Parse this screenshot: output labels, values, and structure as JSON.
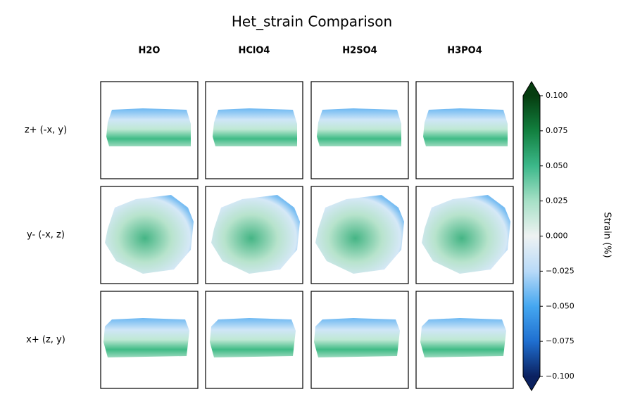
{
  "chart_data": {
    "type": "heatmap",
    "title": "Het_strain Comparison",
    "columns": [
      "H2O",
      "HClO4",
      "H2SO4",
      "H3PO4"
    ],
    "rows": [
      "z+ (-x, y)",
      "y- (-x, z)",
      "x+ (z, y)"
    ],
    "colorbar_label": "Strain (%)",
    "clim": [
      -0.1,
      0.1
    ],
    "cticks": [
      {
        "value": -0.1,
        "label": "−0.100"
      },
      {
        "value": -0.075,
        "label": "−0.075"
      },
      {
        "value": -0.05,
        "label": "−0.050"
      },
      {
        "value": -0.025,
        "label": "−0.025"
      },
      {
        "value": 0,
        "label": "0.000"
      },
      {
        "value": 0.025,
        "label": "0.025"
      },
      {
        "value": 0.05,
        "label": "0.050"
      },
      {
        "value": 0.075,
        "label": "0.075"
      },
      {
        "value": 0.1,
        "label": "0.100"
      }
    ],
    "colormap": [
      "#0b2160",
      "#1f6fd0",
      "#45a7f0",
      "#b8daf8",
      "#eef2f2",
      "#a6e0c6",
      "#3cb88a",
      "#12803f",
      "#063d10"
    ]
  }
}
